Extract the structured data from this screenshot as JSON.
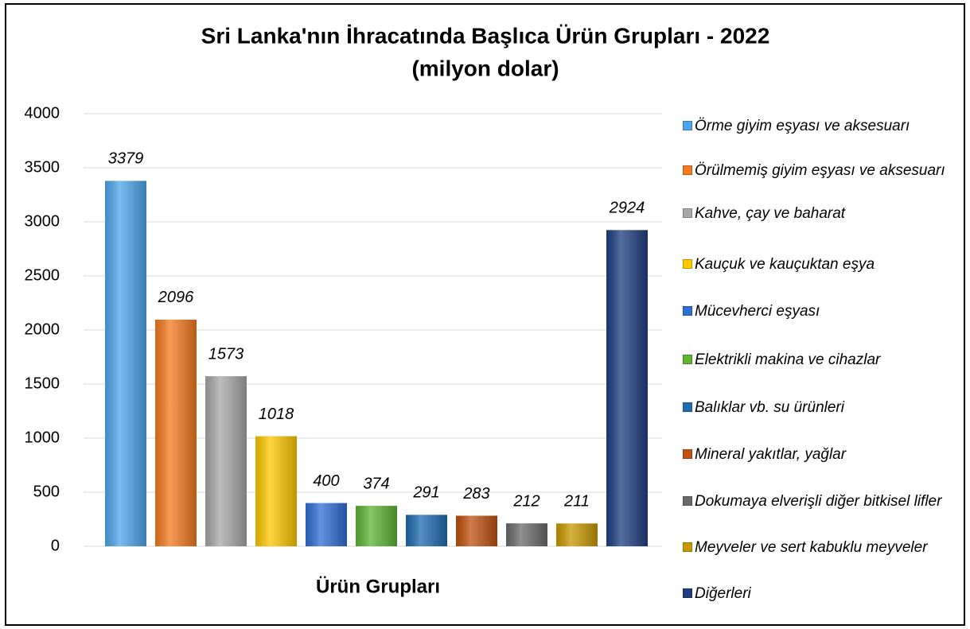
{
  "chart_data": {
    "type": "bar",
    "title": "Sri Lanka'nın İhracatında Başlıca Ürün Grupları - 2022",
    "subtitle": "(milyon dolar)",
    "x_label": "Ürün Grupları",
    "ylim": [
      0,
      4000
    ],
    "yticks": [
      0,
      500,
      1000,
      1500,
      2000,
      2500,
      3000,
      3500,
      4000
    ],
    "grid": true,
    "legend": "right",
    "series": [
      {
        "name": "Örme giyim eşyası ve aksesuarı",
        "color": "#4ea6ea",
        "values": [
          3379
        ]
      },
      {
        "name": "Örülmemiş giyim eşyası ve aksesuarı",
        "color": "#f47b20",
        "values": [
          2096
        ]
      },
      {
        "name": "Kahve, çay ve baharat",
        "color": "#a8a8a8",
        "values": [
          1573
        ]
      },
      {
        "name": "Kauçuk ve kauçuktan eşya",
        "color": "#ffc800",
        "values": [
          1018
        ]
      },
      {
        "name": "Mücevherci eşyası",
        "color": "#2f6fd6",
        "values": [
          400
        ]
      },
      {
        "name": "Elektrikli makina ve cihazlar",
        "color": "#5cb532",
        "values": [
          374
        ]
      },
      {
        "name": "Balıklar vb. su ürünleri",
        "color": "#1f6bb0",
        "values": [
          291
        ]
      },
      {
        "name": "Mineral yakıtlar, yağlar",
        "color": "#c0500f",
        "values": [
          283
        ]
      },
      {
        "name": "Dokumaya elverişli diğer bitkisel lifler",
        "color": "#6b6b6b",
        "values": [
          212
        ]
      },
      {
        "name": "Meyveler ve sert kabuklu meyveler",
        "color": "#c89800",
        "values": [
          211
        ]
      },
      {
        "name": "Diğerleri",
        "color": "#1f3f80",
        "values": [
          2924
        ]
      }
    ]
  }
}
